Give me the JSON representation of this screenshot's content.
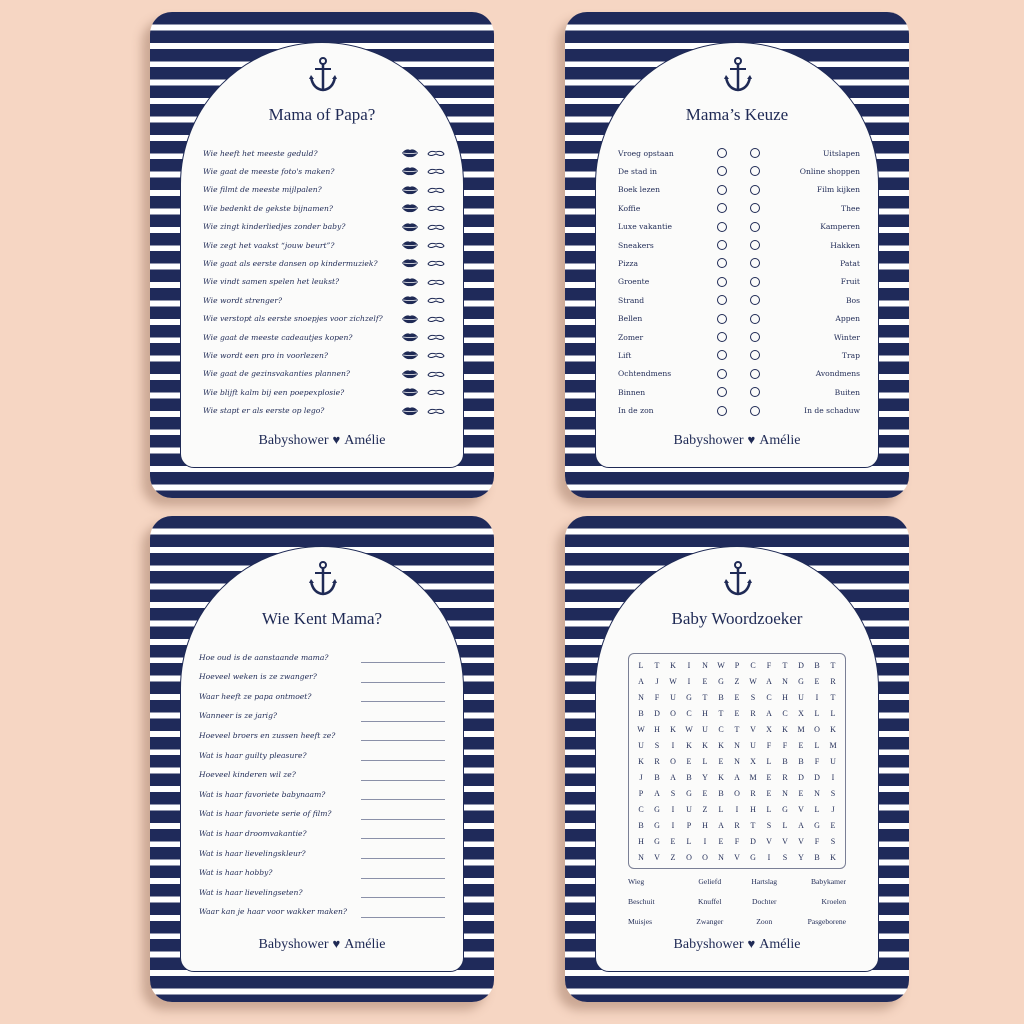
{
  "colors": {
    "navy": "#1f2a5a",
    "background": "#f6d6c3",
    "card": "#fbfbfa"
  },
  "footer": {
    "left": "Babyshower",
    "heart_icon": "heart-icon",
    "right": "Amélie"
  },
  "card1": {
    "title": "Mama of Papa?",
    "icons": [
      "lips-icon",
      "mustache-icon"
    ],
    "questions": [
      "Wie heeft het meeste geduld?",
      "Wie gaat de meeste foto's maken?",
      "Wie filmt de meeste mijlpalen?",
      "Wie bedenkt de gekste bijnamen?",
      "Wie zingt kinderliedjes zonder baby?",
      "Wie zegt het vaakst “jouw beurt”?",
      "Wie gaat als eerste dansen op kindermuziek?",
      "Wie vindt samen spelen het leukst?",
      "Wie wordt strenger?",
      "Wie verstopt als eerste snoepjes voor zichzelf?",
      "Wie gaat de meeste cadeautjes kopen?",
      "Wie wordt een pro in voorlezen?",
      "Wie gaat de gezinsvakanties plannen?",
      "Wie blijft kalm bij een poepexplosie?",
      "Wie stapt er als eerste op lego?"
    ]
  },
  "card2": {
    "title": "Mama’s Keuze",
    "pairs": [
      [
        "Vroeg opstaan",
        "Uitslapen"
      ],
      [
        "De stad in",
        "Online shoppen"
      ],
      [
        "Boek lezen",
        "Film kijken"
      ],
      [
        "Koffie",
        "Thee"
      ],
      [
        "Luxe vakantie",
        "Kamperen"
      ],
      [
        "Sneakers",
        "Hakken"
      ],
      [
        "Pizza",
        "Patat"
      ],
      [
        "Groente",
        "Fruit"
      ],
      [
        "Strand",
        "Bos"
      ],
      [
        "Bellen",
        "Appen"
      ],
      [
        "Zomer",
        "Winter"
      ],
      [
        "Lift",
        "Trap"
      ],
      [
        "Ochtendmens",
        "Avondmens"
      ],
      [
        "Binnen",
        "Buiten"
      ],
      [
        "In de zon",
        "In de schaduw"
      ]
    ]
  },
  "card3": {
    "title": "Wie Kent Mama?",
    "questions": [
      "Hoe oud is de aanstaande mama?",
      "Hoeveel weken is ze zwanger?",
      "Waar heeft ze papa ontmoet?",
      "Wanneer is ze jarig?",
      "Hoeveel broers en zussen heeft ze?",
      "Wat is haar guilty pleasure?",
      "Hoeveel kinderen wil ze?",
      "Wat is haar favoriete babynaam?",
      "Wat is haar favoriete serie of film?",
      "Wat is haar droomvakantie?",
      "Wat is haar lievelingskleur?",
      "Wat is haar hobby?",
      "Wat is haar lievelingseten?",
      "Waar kan je haar voor wakker maken?"
    ]
  },
  "card4": {
    "title": "Baby Woordzoeker",
    "grid": [
      "LTKINWPCFTDBT",
      "AJWIEGZWANGER",
      "NFUGTBESCHUIT",
      "BDOCHTERACXLL",
      "WHKWUCTVXKMOK",
      "USIKKKNUFFELM",
      "KROELENXLBBFU",
      "JBABYKAMERDDI",
      "PASGEBORENENS",
      "CGIUZLIHLGVLJ",
      "BGIPHARTSLAGE",
      "HGELIEFDVVVFS",
      "NVZOONVGISYBK"
    ],
    "words": [
      "Wieg",
      "Geliefd",
      "Hartslag",
      "Babykamer",
      "Beschuit",
      "Knuffel",
      "Dochter",
      "Kroelen",
      "Muisjes",
      "Zwanger",
      "Zoon",
      "Pasgeborene"
    ]
  }
}
